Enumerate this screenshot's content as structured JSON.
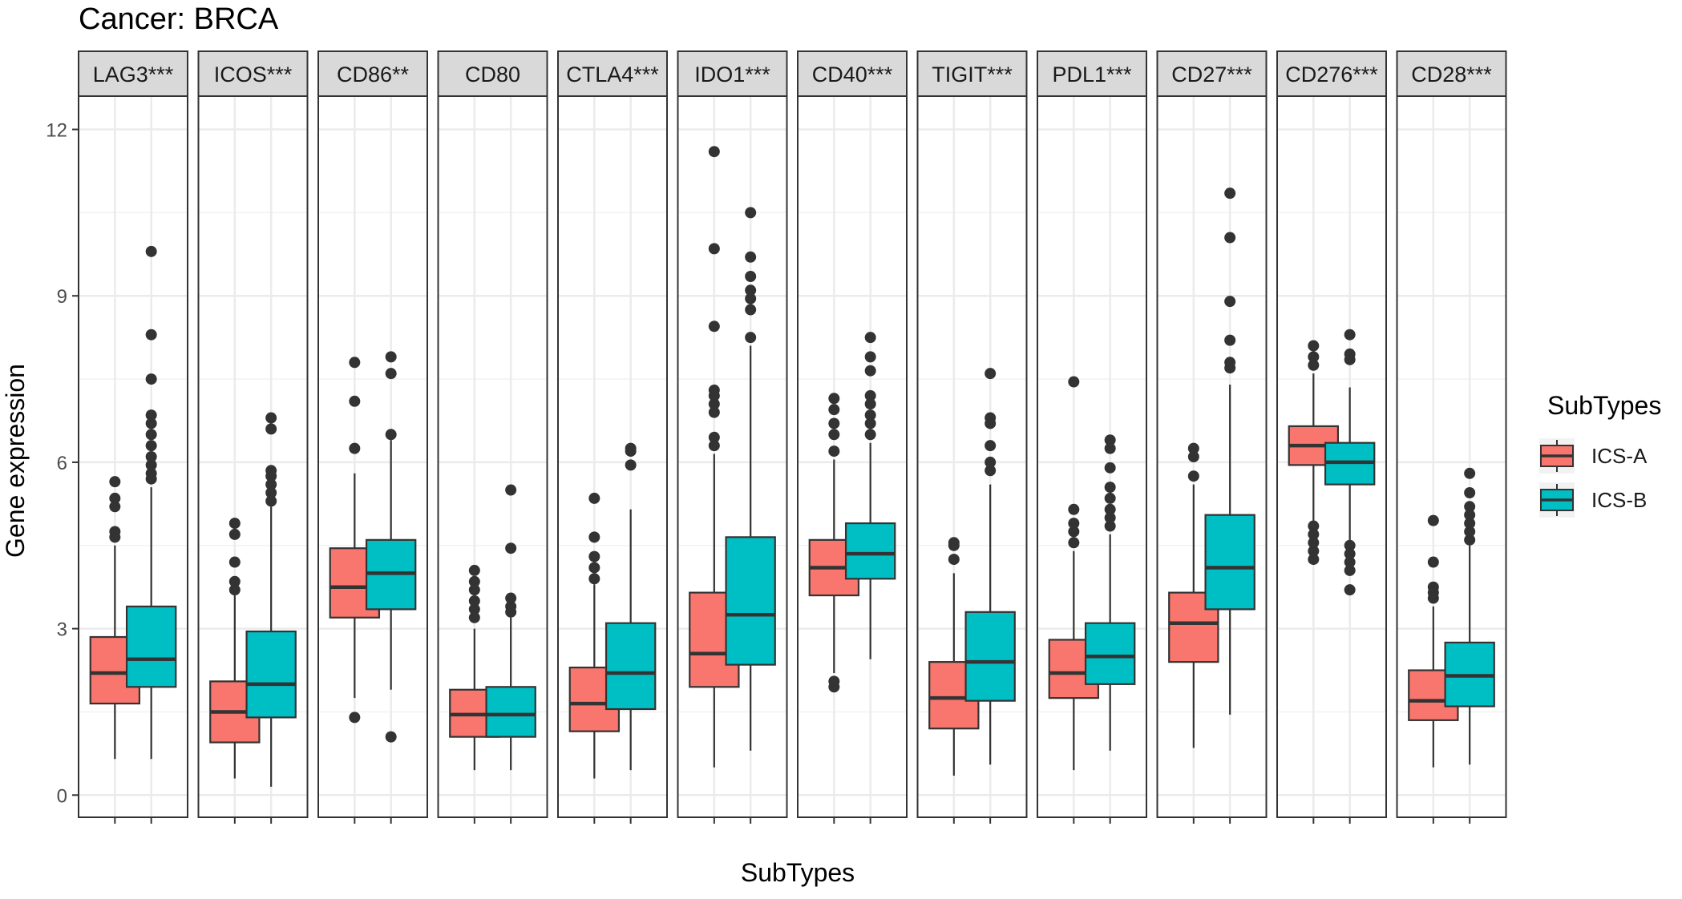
{
  "chart_data": {
    "type": "boxplot",
    "title": "Cancer: BRCA",
    "xlabel": "SubTypes",
    "ylabel": "Gene expression",
    "ylim": [
      -0.4,
      12.6
    ],
    "yticks": [
      0,
      3,
      6,
      9,
      12
    ],
    "legend": {
      "title": "SubTypes",
      "position": "right",
      "entries": [
        {
          "name": "ICS-A",
          "color": "#F8766D"
        },
        {
          "name": "ICS-B",
          "color": "#00BFC4"
        }
      ]
    },
    "facets": [
      {
        "label": "LAG3***",
        "boxes": [
          {
            "group": "ICS-A",
            "low": 0.65,
            "q1": 1.65,
            "median": 2.2,
            "q3": 2.85,
            "high": 4.5,
            "outliers": [
              4.65,
              4.75,
              5.2,
              5.35,
              5.65
            ]
          },
          {
            "group": "ICS-B",
            "low": 0.65,
            "q1": 1.95,
            "median": 2.45,
            "q3": 3.4,
            "high": 5.55,
            "outliers": [
              5.7,
              5.8,
              5.95,
              6.1,
              6.3,
              6.5,
              6.7,
              6.85,
              7.5,
              8.3,
              9.8
            ]
          }
        ]
      },
      {
        "label": "ICOS***",
        "boxes": [
          {
            "group": "ICS-A",
            "low": 0.3,
            "q1": 0.95,
            "median": 1.5,
            "q3": 2.05,
            "high": 3.6,
            "outliers": [
              3.7,
              3.85,
              4.2,
              4.7,
              4.9
            ]
          },
          {
            "group": "ICS-B",
            "low": 0.15,
            "q1": 1.4,
            "median": 2.0,
            "q3": 2.95,
            "high": 5.2,
            "outliers": [
              5.3,
              5.45,
              5.6,
              5.75,
              5.85,
              6.6,
              6.8
            ]
          }
        ]
      },
      {
        "label": "CD86**",
        "boxes": [
          {
            "group": "ICS-A",
            "low": 1.75,
            "q1": 3.2,
            "median": 3.75,
            "q3": 4.45,
            "high": 5.8,
            "outliers": [
              1.4,
              6.25,
              7.1,
              7.8
            ]
          },
          {
            "group": "ICS-B",
            "low": 1.9,
            "q1": 3.35,
            "median": 4.0,
            "q3": 4.6,
            "high": 6.4,
            "outliers": [
              1.05,
              6.5,
              7.6,
              7.9
            ]
          }
        ]
      },
      {
        "label": "CD80",
        "boxes": [
          {
            "group": "ICS-A",
            "low": 0.45,
            "q1": 1.05,
            "median": 1.45,
            "q3": 1.9,
            "high": 3.0,
            "outliers": [
              3.2,
              3.35,
              3.5,
              3.7,
              3.85,
              4.05
            ]
          },
          {
            "group": "ICS-B",
            "low": 0.45,
            "q1": 1.05,
            "median": 1.45,
            "q3": 1.95,
            "high": 3.2,
            "outliers": [
              3.3,
              3.4,
              3.55,
              4.45,
              5.5
            ]
          }
        ]
      },
      {
        "label": "CTLA4***",
        "boxes": [
          {
            "group": "ICS-A",
            "low": 0.3,
            "q1": 1.15,
            "median": 1.65,
            "q3": 2.3,
            "high": 3.8,
            "outliers": [
              3.9,
              4.1,
              4.3,
              4.65,
              5.35
            ]
          },
          {
            "group": "ICS-B",
            "low": 0.45,
            "q1": 1.55,
            "median": 2.2,
            "q3": 3.1,
            "high": 5.15,
            "outliers": [
              5.95,
              6.2,
              6.25
            ]
          }
        ]
      },
      {
        "label": "IDO1***",
        "boxes": [
          {
            "group": "ICS-A",
            "low": 0.5,
            "q1": 1.95,
            "median": 2.55,
            "q3": 3.65,
            "high": 6.15,
            "outliers": [
              6.3,
              6.45,
              6.9,
              7.05,
              7.2,
              7.3,
              8.45,
              9.85,
              11.6
            ]
          },
          {
            "group": "ICS-B",
            "low": 0.8,
            "q1": 2.35,
            "median": 3.25,
            "q3": 4.65,
            "high": 8.1,
            "outliers": [
              8.25,
              8.75,
              8.95,
              9.1,
              9.35,
              9.7,
              10.5
            ]
          }
        ]
      },
      {
        "label": "CD40***",
        "boxes": [
          {
            "group": "ICS-A",
            "low": 2.2,
            "q1": 3.6,
            "median": 4.1,
            "q3": 4.6,
            "high": 6.05,
            "outliers": [
              1.95,
              2.05,
              6.2,
              6.5,
              6.7,
              6.95,
              7.15
            ]
          },
          {
            "group": "ICS-B",
            "low": 2.45,
            "q1": 3.9,
            "median": 4.35,
            "q3": 4.9,
            "high": 6.35,
            "outliers": [
              6.5,
              6.7,
              6.85,
              7.05,
              7.2,
              7.65,
              7.9,
              8.25
            ]
          }
        ]
      },
      {
        "label": "TIGIT***",
        "boxes": [
          {
            "group": "ICS-A",
            "low": 0.35,
            "q1": 1.2,
            "median": 1.75,
            "q3": 2.4,
            "high": 4.0,
            "outliers": [
              4.25,
              4.5,
              4.55
            ]
          },
          {
            "group": "ICS-B",
            "low": 0.55,
            "q1": 1.7,
            "median": 2.4,
            "q3": 3.3,
            "high": 5.6,
            "outliers": [
              5.85,
              6.0,
              6.3,
              6.7,
              6.8,
              7.6
            ]
          }
        ]
      },
      {
        "label": "PDL1***",
        "boxes": [
          {
            "group": "ICS-A",
            "low": 0.45,
            "q1": 1.75,
            "median": 2.2,
            "q3": 2.8,
            "high": 4.4,
            "outliers": [
              4.55,
              4.75,
              4.9,
              5.15,
              7.45
            ]
          },
          {
            "group": "ICS-B",
            "low": 0.8,
            "q1": 2.0,
            "median": 2.5,
            "q3": 3.1,
            "high": 4.7,
            "outliers": [
              4.85,
              5.0,
              5.15,
              5.35,
              5.55,
              5.9,
              6.25,
              6.4
            ]
          }
        ]
      },
      {
        "label": "CD27***",
        "boxes": [
          {
            "group": "ICS-A",
            "low": 0.85,
            "q1": 2.4,
            "median": 3.1,
            "q3": 3.65,
            "high": 5.6,
            "outliers": [
              5.75,
              6.1,
              6.25
            ]
          },
          {
            "group": "ICS-B",
            "low": 1.45,
            "q1": 3.35,
            "median": 4.1,
            "q3": 5.05,
            "high": 7.4,
            "outliers": [
              7.7,
              7.8,
              8.2,
              8.9,
              10.05,
              10.85
            ]
          }
        ]
      },
      {
        "label": "CD276***",
        "boxes": [
          {
            "group": "ICS-A",
            "low": 4.95,
            "q1": 5.95,
            "median": 6.3,
            "q3": 6.65,
            "high": 7.6,
            "outliers": [
              4.25,
              4.4,
              4.55,
              4.7,
              4.85,
              7.75,
              7.9,
              8.1
            ]
          },
          {
            "group": "ICS-B",
            "low": 4.6,
            "q1": 5.6,
            "median": 6.0,
            "q3": 6.35,
            "high": 7.35,
            "outliers": [
              3.7,
              4.05,
              4.2,
              4.35,
              4.5,
              7.85,
              7.95,
              8.3
            ]
          }
        ]
      },
      {
        "label": "CD28***",
        "boxes": [
          {
            "group": "ICS-A",
            "low": 0.5,
            "q1": 1.35,
            "median": 1.7,
            "q3": 2.25,
            "high": 3.4,
            "outliers": [
              3.55,
              3.65,
              3.75,
              4.2,
              4.95
            ]
          },
          {
            "group": "ICS-B",
            "low": 0.55,
            "q1": 1.6,
            "median": 2.15,
            "q3": 2.75,
            "high": 4.5,
            "outliers": [
              4.6,
              4.75,
              4.9,
              5.05,
              5.2,
              5.45,
              5.8
            ]
          }
        ]
      }
    ]
  }
}
